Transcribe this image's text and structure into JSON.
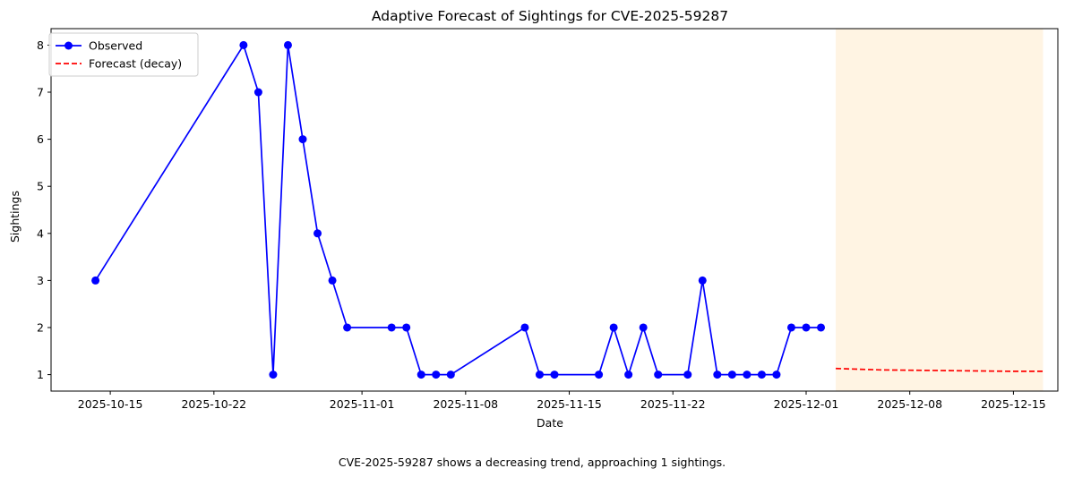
{
  "chart_data": {
    "type": "line",
    "title": "Adaptive Forecast of Sightings for CVE-2025-59287",
    "xlabel": "Date",
    "ylabel": "Sightings",
    "xlim": [
      "2025-10-11T00:00",
      "2025-12-18T00:00"
    ],
    "ylim": [
      0.65,
      8.35
    ],
    "x_ticks": [
      "2025-10-15",
      "2025-10-22",
      "2025-11-01",
      "2025-11-08",
      "2025-11-15",
      "2025-11-22",
      "2025-12-01",
      "2025-12-08",
      "2025-12-15"
    ],
    "y_ticks": [
      1,
      2,
      3,
      4,
      5,
      6,
      7,
      8
    ],
    "grid": false,
    "legend_position": "top-left",
    "forecast_region": {
      "start": "2025-12-03",
      "end": "2025-12-17",
      "color": "#fff4e3"
    },
    "series": [
      {
        "name": "Observed",
        "style": "solid-line-with-markers",
        "color": "#0000ff",
        "points": [
          {
            "x": "2025-10-14",
            "y": 3
          },
          {
            "x": "2025-10-24",
            "y": 8
          },
          {
            "x": "2025-10-25",
            "y": 7
          },
          {
            "x": "2025-10-26",
            "y": 1
          },
          {
            "x": "2025-10-27",
            "y": 8
          },
          {
            "x": "2025-10-28",
            "y": 6
          },
          {
            "x": "2025-10-29",
            "y": 4
          },
          {
            "x": "2025-10-30",
            "y": 3
          },
          {
            "x": "2025-10-31",
            "y": 2
          },
          {
            "x": "2025-11-03",
            "y": 2
          },
          {
            "x": "2025-11-04",
            "y": 2
          },
          {
            "x": "2025-11-05",
            "y": 1
          },
          {
            "x": "2025-11-06",
            "y": 1
          },
          {
            "x": "2025-11-07",
            "y": 1
          },
          {
            "x": "2025-11-12",
            "y": 2
          },
          {
            "x": "2025-11-13",
            "y": 1
          },
          {
            "x": "2025-11-14",
            "y": 1
          },
          {
            "x": "2025-11-17",
            "y": 1
          },
          {
            "x": "2025-11-18",
            "y": 2
          },
          {
            "x": "2025-11-19",
            "y": 1
          },
          {
            "x": "2025-11-20",
            "y": 2
          },
          {
            "x": "2025-11-21",
            "y": 1
          },
          {
            "x": "2025-11-23",
            "y": 1
          },
          {
            "x": "2025-11-24",
            "y": 3
          },
          {
            "x": "2025-11-25",
            "y": 1
          },
          {
            "x": "2025-11-26",
            "y": 1
          },
          {
            "x": "2025-11-27",
            "y": 1
          },
          {
            "x": "2025-11-28",
            "y": 1
          },
          {
            "x": "2025-11-29",
            "y": 1
          },
          {
            "x": "2025-11-30",
            "y": 2
          },
          {
            "x": "2025-12-01",
            "y": 2
          },
          {
            "x": "2025-12-02",
            "y": 2
          }
        ]
      },
      {
        "name": "Forecast (decay)",
        "style": "dashed-line",
        "color": "#ff0000",
        "points": [
          {
            "x": "2025-12-03",
            "y": 1.13
          },
          {
            "x": "2025-12-06",
            "y": 1.1
          },
          {
            "x": "2025-12-09",
            "y": 1.09
          },
          {
            "x": "2025-12-12",
            "y": 1.08
          },
          {
            "x": "2025-12-15",
            "y": 1.07
          },
          {
            "x": "2025-12-17",
            "y": 1.07
          }
        ]
      }
    ],
    "caption": "CVE-2025-59287 shows a decreasing trend, approaching 1 sightings."
  }
}
